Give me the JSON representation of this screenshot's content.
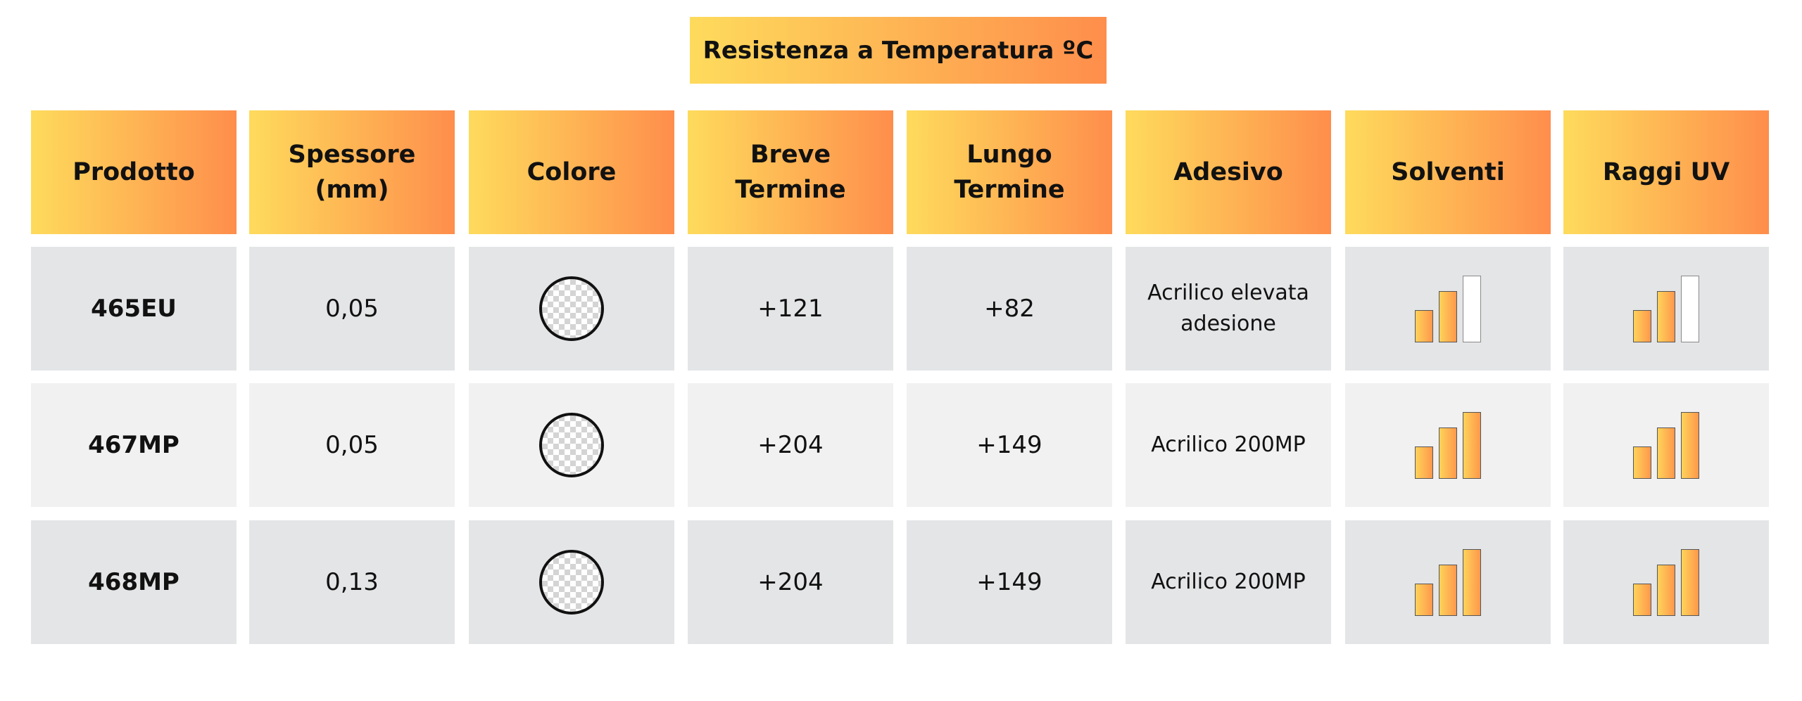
{
  "header": {
    "title": "Resistenza a Temperatura ºC"
  },
  "table": {
    "columns": [
      [
        "Prodotto"
      ],
      [
        "Spessore",
        "(mm)"
      ],
      [
        "Colore"
      ],
      [
        "Breve",
        "Termine"
      ],
      [
        "Lungo",
        "Termine"
      ],
      [
        "Adesivo"
      ],
      [
        "Solventi"
      ],
      [
        "Raggi UV"
      ]
    ],
    "rows": [
      {
        "product": "465EU",
        "thickness": "0,05",
        "short_term": "+121",
        "long_term": "+82",
        "adhesive": "Acrilico elevata adesione",
        "solvents": 2,
        "uv": 2
      },
      {
        "product": "467MP",
        "thickness": "0,05",
        "short_term": "+204",
        "long_term": "+149",
        "adhesive": "Acrilico 200MP",
        "solvents": 3,
        "uv": 3
      },
      {
        "product": "468MP",
        "thickness": "0,13",
        "short_term": "+204",
        "long_term": "+149",
        "adhesive": "Acrilico 200MP",
        "solvents": 3,
        "uv": 3
      }
    ]
  }
}
